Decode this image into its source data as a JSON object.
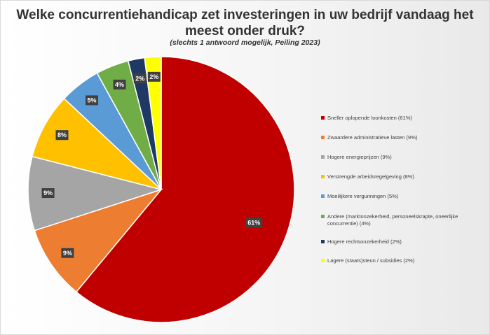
{
  "title_line1": "Welke concurrentiehandicap zet investeringen in uw bedrijf vandaag het",
  "title_line2": "meest onder druk?",
  "subtitle": "(slechts 1 antwoord mogelijk, Peiling 2023)",
  "chart_data": {
    "type": "pie",
    "title": "Welke concurrentiehandicap zet investeringen in uw bedrijf vandaag het meest onder druk?",
    "subtitle": "(slechts 1 antwoord mogelijk, Peiling 2023)",
    "legend_position": "right",
    "slices": [
      {
        "label": "Sneller oplopende loonkosten (61%)",
        "value": 61,
        "data_label": "61%",
        "color": "#c00000"
      },
      {
        "label": "Zwaardere administratieve lasten (9%)",
        "value": 9,
        "data_label": "9%",
        "color": "#ed7d31"
      },
      {
        "label": "Hogere energieprijzen (9%)",
        "value": 9,
        "data_label": "9%",
        "color": "#a5a5a5"
      },
      {
        "label": "Verstrengde arbeidsregelgeving (8%)",
        "value": 8,
        "data_label": "8%",
        "color": "#ffc000"
      },
      {
        "label": "Moeilijkere vergunningen (5%)",
        "value": 5,
        "data_label": "5%",
        "color": "#5b9bd5"
      },
      {
        "label": "Andere (marktonzekerheid, personeelskrapte, oneerlijke concurrentie) (4%)",
        "value": 4,
        "data_label": "4%",
        "color": "#70ad47"
      },
      {
        "label": "Hogere rechtsonzekerheid (2%)",
        "value": 2,
        "data_label": "2%",
        "color": "#203864"
      },
      {
        "label": "Lagere (staats)steun / subsidies (2%)",
        "value": 2,
        "data_label": "2%",
        "color": "#ffff00"
      }
    ]
  }
}
